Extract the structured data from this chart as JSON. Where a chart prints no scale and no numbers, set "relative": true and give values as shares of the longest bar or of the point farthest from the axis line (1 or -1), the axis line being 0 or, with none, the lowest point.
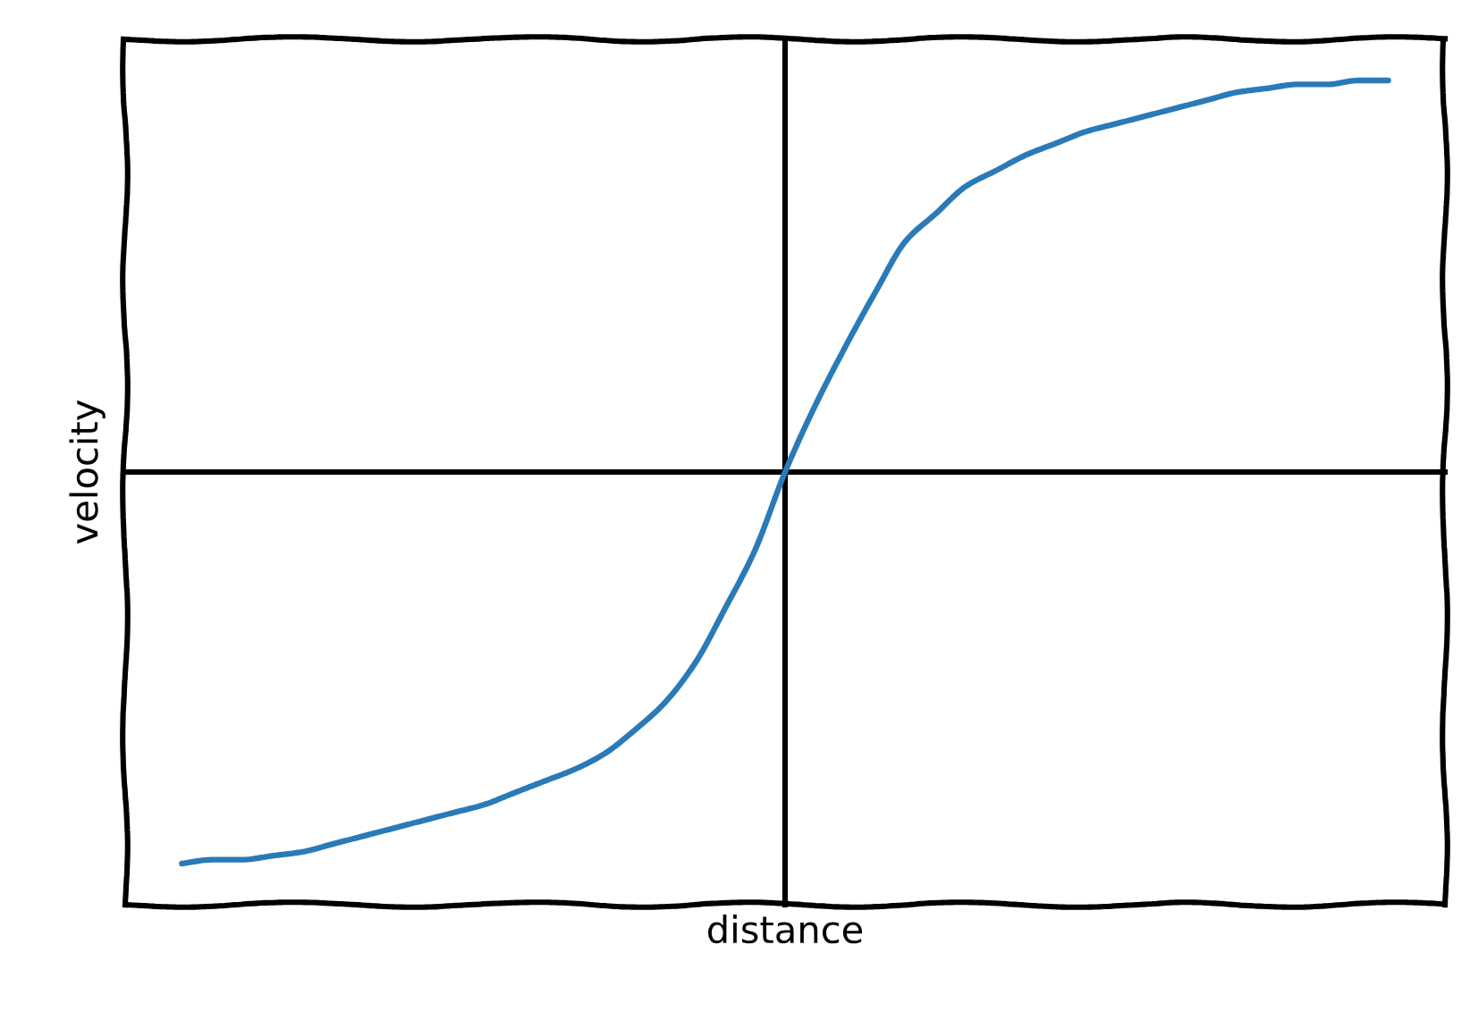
{
  "chart_data": {
    "type": "line",
    "xlabel": "distance",
    "ylabel": "velocity",
    "relative": true,
    "categories": [
      null,
      null,
      null,
      null,
      null,
      null,
      null,
      null,
      null,
      null,
      null,
      null,
      null,
      null,
      null,
      null,
      null,
      null,
      null,
      null,
      null,
      null,
      null,
      null,
      null,
      null,
      null,
      null,
      null,
      null,
      null,
      null,
      null,
      null,
      null,
      null,
      null,
      null,
      null,
      null,
      null
    ],
    "series": [
      {
        "color": "#2a7ab8",
        "values": [
          -1.0,
          -0.99,
          -0.99,
          -0.98,
          -0.97,
          -0.95,
          -0.93,
          -0.91,
          -0.89,
          -0.87,
          -0.85,
          -0.82,
          -0.79,
          -0.76,
          -0.72,
          -0.66,
          -0.59,
          -0.49,
          -0.35,
          -0.2,
          0.0,
          0.17,
          0.32,
          0.46,
          0.59,
          0.66,
          0.73,
          0.77,
          0.81,
          0.84,
          0.87,
          0.89,
          0.91,
          0.93,
          0.95,
          0.97,
          0.98,
          0.99,
          0.99,
          1.0,
          1.0
        ]
      }
    ]
  }
}
